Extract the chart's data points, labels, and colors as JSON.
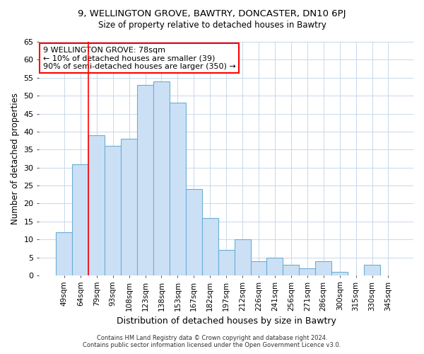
{
  "title1": "9, WELLINGTON GROVE, BAWTRY, DONCASTER, DN10 6PJ",
  "title2": "Size of property relative to detached houses in Bawtry",
  "xlabel": "Distribution of detached houses by size in Bawtry",
  "ylabel": "Number of detached properties",
  "categories": [
    "49sqm",
    "64sqm",
    "79sqm",
    "93sqm",
    "108sqm",
    "123sqm",
    "138sqm",
    "153sqm",
    "167sqm",
    "182sqm",
    "197sqm",
    "212sqm",
    "226sqm",
    "241sqm",
    "256sqm",
    "271sqm",
    "286sqm",
    "300sqm",
    "315sqm",
    "330sqm",
    "345sqm"
  ],
  "values": [
    12,
    31,
    39,
    36,
    38,
    53,
    54,
    48,
    24,
    16,
    7,
    10,
    4,
    5,
    3,
    2,
    4,
    1,
    0,
    3,
    0
  ],
  "bar_color": "#cce0f5",
  "bar_edge_color": "#6aaed6",
  "ylim": [
    0,
    65
  ],
  "yticks": [
    0,
    5,
    10,
    15,
    20,
    25,
    30,
    35,
    40,
    45,
    50,
    55,
    60,
    65
  ],
  "red_line_x": 2.0,
  "annotation_title": "9 WELLINGTON GROVE: 78sqm",
  "annotation_line1": "← 10% of detached houses are smaller (39)",
  "annotation_line2": "90% of semi-detached houses are larger (350) →",
  "footer1": "Contains HM Land Registry data © Crown copyright and database right 2024.",
  "footer2": "Contains public sector information licensed under the Open Government Licence v3.0.",
  "background_color": "#ffffff",
  "plot_background": "#ffffff"
}
